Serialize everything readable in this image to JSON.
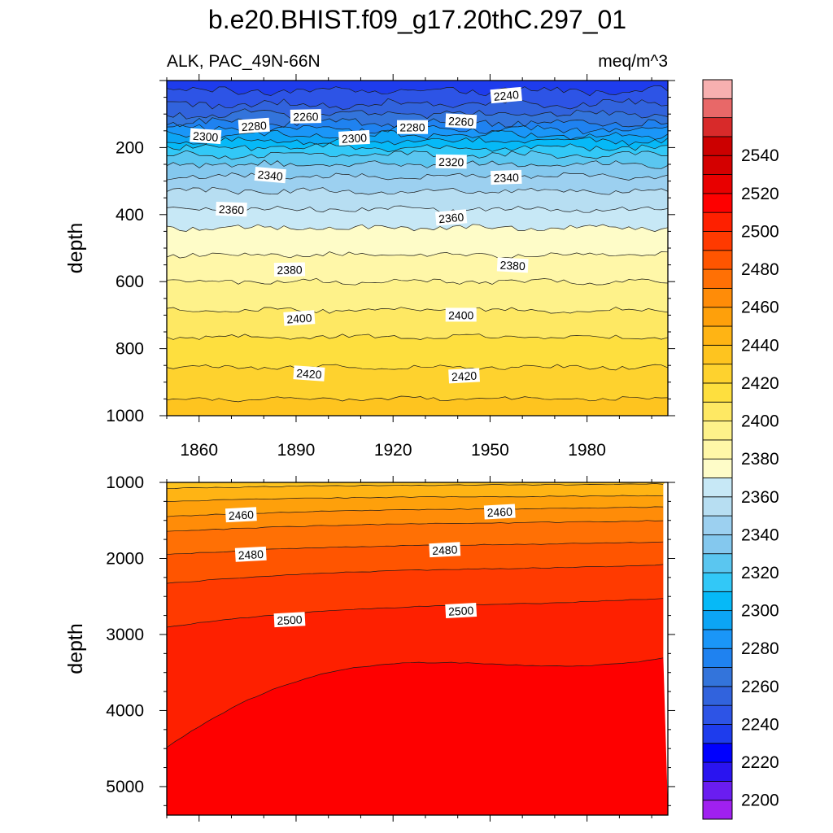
{
  "chart_data": {
    "type": "contour",
    "title": "b.e20.BHIST.f09_g17.20thC.297_01",
    "variable_label": "ALK, PAC_49N-66N",
    "units_label": "meq/m^3",
    "xlim": [
      1850,
      2005
    ],
    "x_ticks": [
      "1860",
      "1890",
      "1920",
      "1950",
      "1980"
    ],
    "panels": [
      {
        "name": "upper",
        "ylabel": "depth",
        "ylim": [
          0,
          1000
        ],
        "y_ticks": [
          "200",
          "400",
          "600",
          "800",
          "1000"
        ],
        "contour_levels": [
          2240,
          2250,
          2260,
          2270,
          2280,
          2290,
          2300,
          2310,
          2320,
          2330,
          2340,
          2350,
          2360,
          2370,
          2380,
          2390,
          2400,
          2410,
          2420,
          2430
        ],
        "level_depths": [
          30,
          70,
          100,
          125,
          145,
          163,
          180,
          200,
          222,
          250,
          285,
          330,
          385,
          440,
          520,
          600,
          685,
          765,
          855,
          950
        ],
        "contour_labels": [
          {
            "text": "2240",
            "x": 1955,
            "y": 45
          },
          {
            "text": "2260",
            "x": 1893,
            "y": 108
          },
          {
            "text": "2260",
            "x": 1941,
            "y": 122
          },
          {
            "text": "2280",
            "x": 1877,
            "y": 136
          },
          {
            "text": "2280",
            "x": 1926,
            "y": 140
          },
          {
            "text": "2300",
            "x": 1862,
            "y": 167
          },
          {
            "text": "2300",
            "x": 1908,
            "y": 172
          },
          {
            "text": "2320",
            "x": 1938,
            "y": 243
          },
          {
            "text": "2340",
            "x": 1882,
            "y": 283
          },
          {
            "text": "2340",
            "x": 1955,
            "y": 290
          },
          {
            "text": "2360",
            "x": 1870,
            "y": 385
          },
          {
            "text": "2360",
            "x": 1938,
            "y": 410
          },
          {
            "text": "2380",
            "x": 1888,
            "y": 565
          },
          {
            "text": "2380",
            "x": 1957,
            "y": 552
          },
          {
            "text": "2400",
            "x": 1891,
            "y": 710
          },
          {
            "text": "2400",
            "x": 1941,
            "y": 700
          },
          {
            "text": "2420",
            "x": 1894,
            "y": 875
          },
          {
            "text": "2420",
            "x": 1942,
            "y": 882
          }
        ]
      },
      {
        "name": "lower",
        "ylabel": "depth",
        "ylim": [
          1000,
          5375
        ],
        "y_ticks": [
          "1000",
          "2000",
          "3000",
          "4000",
          "5000"
        ],
        "contour_levels": [
          2440,
          2450,
          2460,
          2470,
          2480,
          2490,
          2500,
          2510
        ],
        "level_depths_start": [
          1080,
          1250,
          1450,
          1650,
          1950,
          2330,
          2900,
          4480
        ],
        "level_depths_end": [
          1020,
          1170,
          1320,
          1500,
          1780,
          2080,
          2520,
          3300
        ],
        "contour_labels": [
          {
            "text": "2460",
            "x": 1873,
            "y": 1430
          },
          {
            "text": "2460",
            "x": 1953,
            "y": 1390
          },
          {
            "text": "2480",
            "x": 1876,
            "y": 1950
          },
          {
            "text": "2480",
            "x": 1936,
            "y": 1890
          },
          {
            "text": "2500",
            "x": 1888,
            "y": 2810
          },
          {
            "text": "2500",
            "x": 1941,
            "y": 2690
          }
        ]
      }
    ],
    "colorbar": {
      "levels": [
        2200,
        2210,
        2220,
        2230,
        2240,
        2250,
        2260,
        2270,
        2280,
        2290,
        2300,
        2310,
        2320,
        2330,
        2340,
        2350,
        2360,
        2370,
        2380,
        2390,
        2400,
        2410,
        2420,
        2430,
        2440,
        2450,
        2460,
        2470,
        2480,
        2490,
        2500,
        2510,
        2520,
        2530,
        2540,
        2550
      ],
      "labels": [
        "2200",
        "2220",
        "2240",
        "2260",
        "2280",
        "2300",
        "2320",
        "2340",
        "2360",
        "2380",
        "2400",
        "2420",
        "2440",
        "2460",
        "2480",
        "2500",
        "2520",
        "2540"
      ],
      "colors": [
        "#a020f0",
        "#6a1df0",
        "#2a14f0",
        "#0000fe",
        "#1e3ced",
        "#2d54e6",
        "#3163dd",
        "#3374db",
        "#1f82f0",
        "#1a96f8",
        "#0ca5f5",
        "#06b9f7",
        "#32c8f7",
        "#5ac6f0",
        "#84c8ee",
        "#9cd0f0",
        "#b7def2",
        "#c7e8f6",
        "#fefcc8",
        "#fff7a8",
        "#fef28a",
        "#fee863",
        "#fedf3e",
        "#fed22e",
        "#fec41f",
        "#ffb414",
        "#fea00b",
        "#ff8c08",
        "#ff7005",
        "#ff5500",
        "#ff3a00",
        "#fe2000",
        "#fe0000",
        "#e80000",
        "#d40000",
        "#cc0000",
        "#d82a2a",
        "#e86868",
        "#f7b0b0"
      ]
    }
  }
}
